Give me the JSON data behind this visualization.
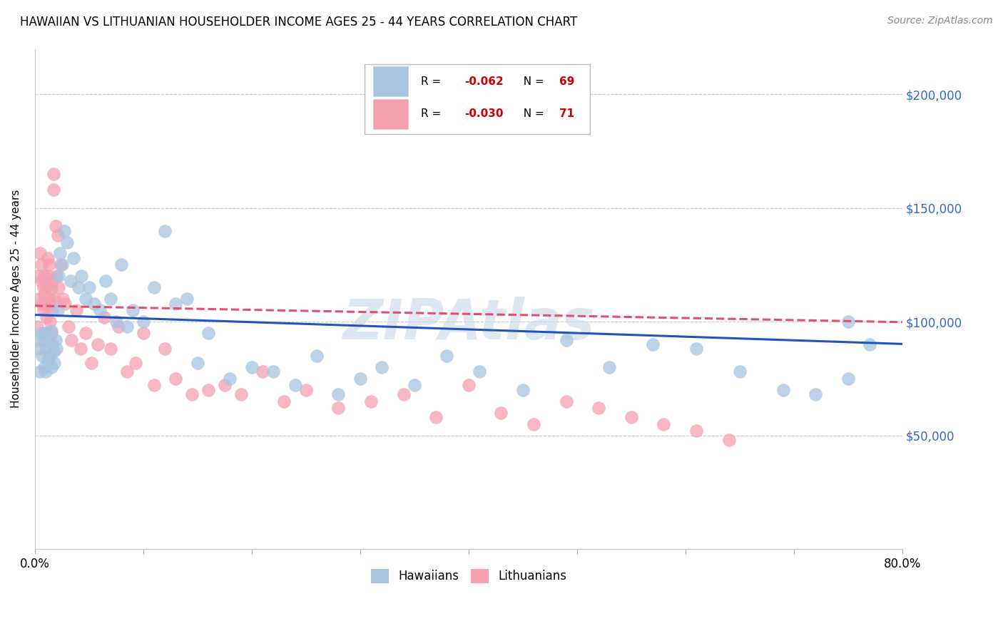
{
  "title": "HAWAIIAN VS LITHUANIAN HOUSEHOLDER INCOME AGES 25 - 44 YEARS CORRELATION CHART",
  "source": "Source: ZipAtlas.com",
  "ylabel": "Householder Income Ages 25 - 44 years",
  "xlim": [
    0.0,
    0.8
  ],
  "ylim": [
    0,
    220000
  ],
  "yticks": [
    0,
    50000,
    100000,
    150000,
    200000
  ],
  "ytick_labels": [
    "",
    "$50,000",
    "$100,000",
    "$150,000",
    "$200,000"
  ],
  "xticks": [
    0.0,
    0.1,
    0.2,
    0.3,
    0.4,
    0.5,
    0.6,
    0.7,
    0.8
  ],
  "legend_r_hawaiians": "-0.062",
  "legend_n_hawaiians": "69",
  "legend_r_lithuanians": "-0.030",
  "legend_n_lithuanians": "71",
  "hawaiian_color": "#a8c4e0",
  "lithuanian_color": "#f4a0b0",
  "hawaiian_line_color": "#2255bb",
  "lithuanian_line_color": "#e05070",
  "watermark": "ZIPAtlas",
  "watermark_color": "#c8d8e8",
  "hawaiians_x": [
    0.002,
    0.004,
    0.005,
    0.006,
    0.007,
    0.008,
    0.009,
    0.01,
    0.01,
    0.011,
    0.012,
    0.013,
    0.014,
    0.015,
    0.015,
    0.016,
    0.017,
    0.018,
    0.019,
    0.02,
    0.021,
    0.022,
    0.023,
    0.025,
    0.027,
    0.03,
    0.033,
    0.036,
    0.04,
    0.043,
    0.047,
    0.05,
    0.055,
    0.06,
    0.065,
    0.07,
    0.075,
    0.08,
    0.085,
    0.09,
    0.1,
    0.11,
    0.12,
    0.13,
    0.14,
    0.15,
    0.16,
    0.18,
    0.2,
    0.22,
    0.24,
    0.26,
    0.28,
    0.3,
    0.32,
    0.35,
    0.38,
    0.41,
    0.45,
    0.49,
    0.53,
    0.57,
    0.61,
    0.65,
    0.69,
    0.72,
    0.75,
    0.77,
    0.75
  ],
  "hawaiians_y": [
    92000,
    88000,
    78000,
    95000,
    85000,
    92000,
    80000,
    95000,
    78000,
    88000,
    83000,
    91000,
    85000,
    96000,
    80000,
    90000,
    87000,
    82000,
    92000,
    88000,
    105000,
    120000,
    130000,
    125000,
    140000,
    135000,
    118000,
    128000,
    115000,
    120000,
    110000,
    115000,
    108000,
    105000,
    118000,
    110000,
    100000,
    125000,
    98000,
    105000,
    100000,
    115000,
    140000,
    108000,
    110000,
    82000,
    95000,
    75000,
    80000,
    78000,
    72000,
    85000,
    68000,
    75000,
    80000,
    72000,
    85000,
    78000,
    70000,
    92000,
    80000,
    90000,
    88000,
    78000,
    70000,
    68000,
    75000,
    90000,
    100000
  ],
  "lithuanians_x": [
    0.002,
    0.003,
    0.004,
    0.005,
    0.006,
    0.006,
    0.007,
    0.008,
    0.008,
    0.009,
    0.009,
    0.01,
    0.01,
    0.011,
    0.011,
    0.012,
    0.012,
    0.013,
    0.013,
    0.014,
    0.014,
    0.015,
    0.015,
    0.016,
    0.016,
    0.017,
    0.017,
    0.018,
    0.019,
    0.02,
    0.021,
    0.022,
    0.024,
    0.026,
    0.028,
    0.031,
    0.034,
    0.038,
    0.042,
    0.047,
    0.052,
    0.058,
    0.064,
    0.07,
    0.077,
    0.085,
    0.093,
    0.1,
    0.11,
    0.12,
    0.13,
    0.145,
    0.16,
    0.175,
    0.19,
    0.21,
    0.23,
    0.25,
    0.28,
    0.31,
    0.34,
    0.37,
    0.4,
    0.43,
    0.46,
    0.49,
    0.52,
    0.55,
    0.58,
    0.61,
    0.64
  ],
  "lithuanians_y": [
    98000,
    120000,
    110000,
    130000,
    118000,
    125000,
    108000,
    105000,
    115000,
    112000,
    120000,
    95000,
    108000,
    102000,
    115000,
    120000,
    128000,
    125000,
    110000,
    108000,
    100000,
    115000,
    95000,
    105000,
    118000,
    165000,
    158000,
    110000,
    142000,
    120000,
    138000,
    115000,
    125000,
    110000,
    108000,
    98000,
    92000,
    105000,
    88000,
    95000,
    82000,
    90000,
    102000,
    88000,
    98000,
    78000,
    82000,
    95000,
    72000,
    88000,
    75000,
    68000,
    70000,
    72000,
    68000,
    78000,
    65000,
    70000,
    62000,
    65000,
    68000,
    58000,
    72000,
    60000,
    55000,
    65000,
    62000,
    58000,
    55000,
    52000,
    48000
  ]
}
